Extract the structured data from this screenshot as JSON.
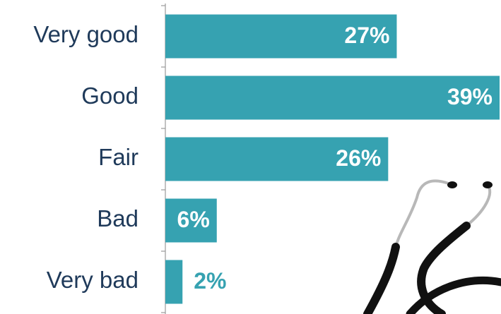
{
  "chart_data": {
    "type": "hbar",
    "categories": [
      "Very good",
      "Good",
      "Fair",
      "Bad",
      "Very bad"
    ],
    "values": [
      27,
      39,
      26,
      6,
      2
    ],
    "value_labels": [
      "27%",
      "39%",
      "26%",
      "6%",
      "2%"
    ],
    "color": "#36a2b1"
  }
}
